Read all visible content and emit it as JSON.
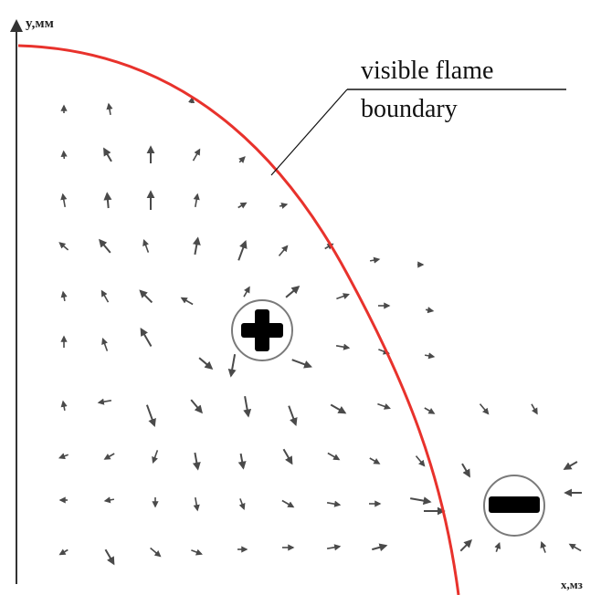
{
  "axes": {
    "y_label": "y,мм",
    "x_label": "x,мз"
  },
  "annotation": {
    "line1": "visible flame",
    "line2": "boundary"
  },
  "charges": [
    {
      "sign": "+",
      "name": "positive-charge"
    },
    {
      "sign": "-",
      "name": "negative-charge"
    }
  ],
  "colors": {
    "flame_boundary": "#e8322c",
    "arrows": "#4a4a4a",
    "axes": "#333333"
  }
}
